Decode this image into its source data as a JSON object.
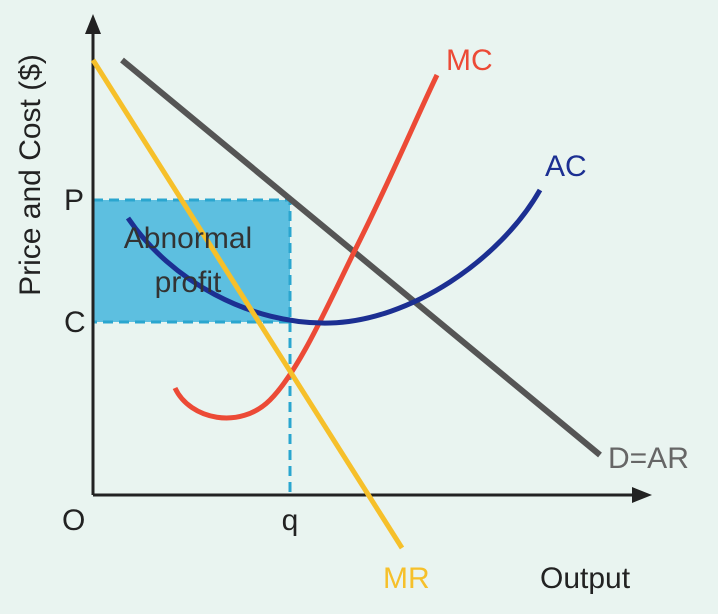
{
  "axis_labels": {
    "y": "Price and Cost ($)",
    "x": "Output",
    "origin": "O"
  },
  "markers": {
    "price": "P",
    "cost": "C",
    "quantity": "q"
  },
  "curves": {
    "mc": "MC",
    "ac": "AC",
    "demand": "D=AR",
    "mr": "MR"
  },
  "region": {
    "lines": [
      "Abnormal",
      "profit"
    ]
  }
}
